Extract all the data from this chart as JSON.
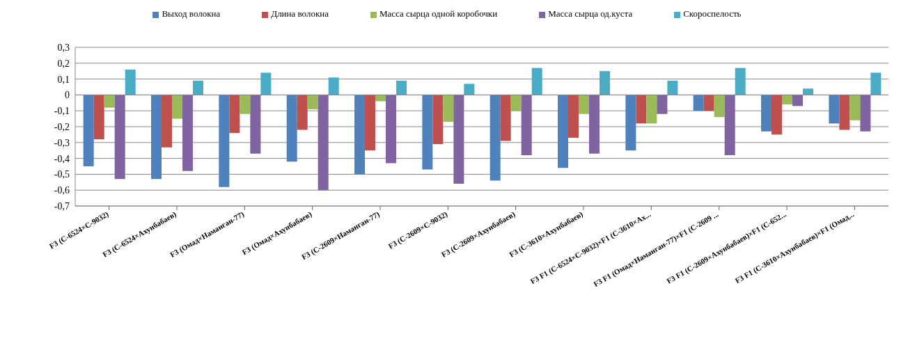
{
  "chart_data": {
    "type": "bar",
    "categories": [
      "F3 (С-6524×С-9032)",
      "F3 (С-6524×Ахунбабаев)",
      "F3 (Омад×Наманган-77)",
      "F3 (Омад×Ахунбабаев)",
      "F3 (С-2609×Наманган-77)",
      "F3 (С-2609×С-9032)",
      "F3 (С-2609×Ахунбабаев)",
      "F3 (С-3610×Ахунбабаев)",
      "F3 F1 (С-6524×С-9032)×F1 (С-3610×Ах...",
      "F3 F1 (Омад×Наманган-77)×F1 (С-2609 ...",
      "F3 F1 (С-2609×Ахунбабаев)×F1 (С-652...",
      "F3 F1 (С-3610×Ахунбабаев)×F1 (Омад..."
    ],
    "series": [
      {
        "name": "Выход волокна",
        "color": "#4f81bd",
        "values": [
          -0.45,
          -0.53,
          -0.58,
          -0.42,
          -0.5,
          -0.47,
          -0.54,
          -0.46,
          -0.35,
          -0.1,
          -0.23,
          -0.18
        ]
      },
      {
        "name": "Длина волокна",
        "color": "#c0504d",
        "values": [
          -0.28,
          -0.33,
          -0.24,
          -0.22,
          -0.35,
          -0.31,
          -0.29,
          -0.27,
          -0.18,
          -0.1,
          -0.25,
          -0.22
        ]
      },
      {
        "name": "Масса сырца одной коробочки",
        "color": "#9bbb59",
        "values": [
          -0.08,
          -0.15,
          -0.12,
          -0.09,
          -0.04,
          -0.17,
          -0.1,
          -0.12,
          -0.18,
          -0.14,
          -0.06,
          -0.16
        ]
      },
      {
        "name": "Масса сырца од.куста",
        "color": "#8064a2",
        "values": [
          -0.53,
          -0.48,
          -0.37,
          -0.6,
          -0.43,
          -0.56,
          -0.38,
          -0.37,
          -0.12,
          -0.38,
          -0.07,
          -0.23
        ]
      },
      {
        "name": "Скороспелость",
        "color": "#4bacc6",
        "values": [
          0.16,
          0.09,
          0.14,
          0.11,
          0.09,
          0.07,
          0.17,
          0.15,
          0.09,
          0.17,
          0.04,
          0.14
        ]
      }
    ],
    "ylim": [
      -0.7,
      0.3
    ],
    "yticks": [
      {
        "value": -0.7,
        "label": "-0,7"
      },
      {
        "value": -0.6,
        "label": "-0,6"
      },
      {
        "value": -0.5,
        "label": "-0,5"
      },
      {
        "value": -0.4,
        "label": "-0,4"
      },
      {
        "value": -0.3,
        "label": "-0,3"
      },
      {
        "value": -0.2,
        "label": "-0,2"
      },
      {
        "value": -0.1,
        "label": "-0,1"
      },
      0,
      {
        "value": 0.1,
        "label": "0,1"
      },
      {
        "value": 0.2,
        "label": "0,2"
      },
      {
        "value": 0.3,
        "label": "0,3"
      }
    ],
    "grid": "y",
    "legend": "top"
  }
}
